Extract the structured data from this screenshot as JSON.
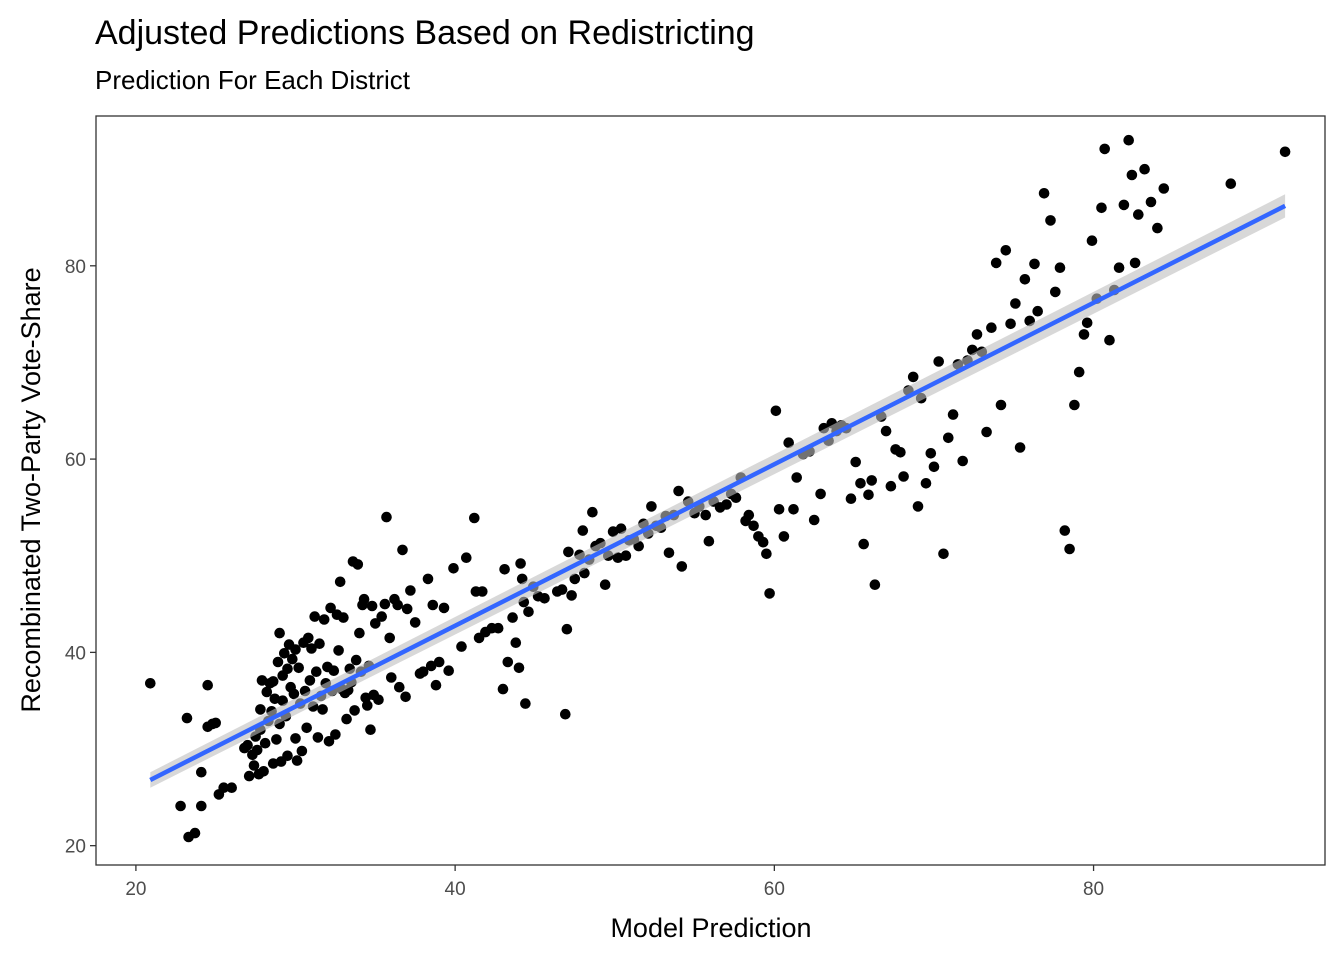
{
  "chart_data": {
    "type": "scatter",
    "title": "Adjusted Predictions Based on Redistricting",
    "subtitle": "Prediction For Each District",
    "xlabel": "Model Prediction",
    "ylabel": "Recombinated Two-Party Vote-Share",
    "xlim": [
      17.5,
      94.5
    ],
    "ylim": [
      18,
      95.5
    ],
    "x_ticks": [
      20,
      40,
      60,
      80
    ],
    "y_ticks": [
      20,
      40,
      60,
      80
    ],
    "grid": false,
    "point_color": "#000000",
    "fit_line": {
      "method": "linear",
      "color": "#3366FF",
      "band_color": "#BEBEBE",
      "x": [
        20.9,
        92.0
      ],
      "y": [
        26.8,
        86.2
      ],
      "band_halfwidth": [
        0.8,
        1.2
      ]
    },
    "points": [
      [
        20.9,
        36.8
      ],
      [
        22.8,
        24.1
      ],
      [
        23.2,
        33.2
      ],
      [
        23.3,
        20.9
      ],
      [
        23.7,
        21.3
      ],
      [
        24.1,
        24.1
      ],
      [
        24.1,
        27.6
      ],
      [
        24.5,
        36.6
      ],
      [
        24.5,
        32.3
      ],
      [
        24.8,
        32.6
      ],
      [
        25.0,
        32.7
      ],
      [
        25.2,
        25.3
      ],
      [
        25.5,
        26.0
      ],
      [
        26.0,
        26.0
      ],
      [
        26.8,
        30.1
      ],
      [
        27.0,
        30.4
      ],
      [
        27.1,
        27.2
      ],
      [
        27.3,
        29.4
      ],
      [
        27.4,
        28.3
      ],
      [
        27.5,
        31.3
      ],
      [
        27.6,
        29.9
      ],
      [
        27.7,
        27.4
      ],
      [
        27.8,
        32.0
      ],
      [
        27.8,
        34.1
      ],
      [
        27.9,
        37.1
      ],
      [
        28.0,
        27.7
      ],
      [
        28.1,
        30.6
      ],
      [
        28.2,
        35.9
      ],
      [
        28.3,
        32.9
      ],
      [
        28.4,
        36.8
      ],
      [
        28.5,
        33.9
      ],
      [
        28.6,
        28.5
      ],
      [
        28.6,
        37.0
      ],
      [
        28.7,
        35.2
      ],
      [
        28.8,
        31.0
      ],
      [
        28.9,
        39.0
      ],
      [
        29.0,
        32.6
      ],
      [
        29.0,
        42.0
      ],
      [
        29.1,
        28.7
      ],
      [
        29.2,
        37.6
      ],
      [
        29.2,
        35.0
      ],
      [
        29.3,
        39.9
      ],
      [
        29.4,
        33.4
      ],
      [
        29.5,
        29.3
      ],
      [
        29.5,
        38.3
      ],
      [
        29.6,
        40.8
      ],
      [
        29.7,
        36.4
      ],
      [
        29.8,
        39.3
      ],
      [
        29.9,
        35.7
      ],
      [
        30.0,
        31.1
      ],
      [
        30.0,
        40.3
      ],
      [
        30.1,
        28.8
      ],
      [
        30.2,
        38.4
      ],
      [
        30.3,
        34.7
      ],
      [
        30.4,
        29.8
      ],
      [
        30.5,
        41.0
      ],
      [
        30.6,
        36.0
      ],
      [
        30.7,
        32.2
      ],
      [
        30.8,
        41.5
      ],
      [
        30.9,
        37.1
      ],
      [
        31.0,
        40.4
      ],
      [
        31.1,
        34.4
      ],
      [
        31.2,
        43.7
      ],
      [
        31.3,
        38.0
      ],
      [
        31.4,
        31.2
      ],
      [
        31.5,
        40.9
      ],
      [
        31.6,
        35.5
      ],
      [
        31.7,
        34.1
      ],
      [
        31.8,
        43.4
      ],
      [
        31.9,
        36.8
      ],
      [
        32.0,
        38.5
      ],
      [
        32.1,
        30.8
      ],
      [
        32.2,
        44.6
      ],
      [
        32.3,
        36.0
      ],
      [
        32.4,
        38.1
      ],
      [
        32.5,
        31.5
      ],
      [
        32.6,
        43.9
      ],
      [
        32.7,
        40.2
      ],
      [
        32.8,
        47.3
      ],
      [
        32.9,
        36.2
      ],
      [
        33.0,
        43.6
      ],
      [
        33.1,
        35.8
      ],
      [
        33.2,
        33.1
      ],
      [
        33.3,
        36.1
      ],
      [
        33.4,
        38.3
      ],
      [
        33.5,
        36.9
      ],
      [
        33.6,
        49.4
      ],
      [
        33.7,
        34.0
      ],
      [
        33.8,
        39.2
      ],
      [
        33.9,
        49.1
      ],
      [
        34.0,
        42.0
      ],
      [
        34.1,
        38.0
      ],
      [
        34.2,
        44.9
      ],
      [
        34.3,
        45.5
      ],
      [
        34.4,
        35.3
      ],
      [
        34.5,
        34.5
      ],
      [
        34.6,
        38.6
      ],
      [
        34.7,
        32.0
      ],
      [
        34.8,
        44.8
      ],
      [
        34.9,
        35.6
      ],
      [
        35.0,
        43.0
      ],
      [
        35.2,
        35.1
      ],
      [
        35.4,
        43.7
      ],
      [
        35.6,
        45.0
      ],
      [
        35.7,
        54.0
      ],
      [
        35.9,
        41.5
      ],
      [
        36.0,
        37.4
      ],
      [
        36.2,
        45.5
      ],
      [
        36.4,
        44.9
      ],
      [
        36.5,
        36.4
      ],
      [
        36.7,
        50.6
      ],
      [
        36.9,
        35.4
      ],
      [
        37.0,
        44.5
      ],
      [
        37.2,
        46.4
      ],
      [
        37.5,
        43.1
      ],
      [
        37.8,
        37.8
      ],
      [
        38.0,
        38.0
      ],
      [
        38.3,
        47.6
      ],
      [
        38.5,
        38.6
      ],
      [
        38.6,
        44.9
      ],
      [
        38.8,
        36.6
      ],
      [
        39.0,
        39.0
      ],
      [
        39.3,
        44.6
      ],
      [
        39.6,
        38.1
      ],
      [
        39.9,
        48.7
      ],
      [
        40.4,
        40.6
      ],
      [
        40.7,
        49.8
      ],
      [
        41.2,
        53.9
      ],
      [
        41.3,
        46.3
      ],
      [
        41.5,
        41.5
      ],
      [
        41.7,
        46.3
      ],
      [
        41.9,
        42.1
      ],
      [
        42.3,
        42.5
      ],
      [
        42.7,
        42.5
      ],
      [
        43.0,
        36.2
      ],
      [
        43.1,
        48.6
      ],
      [
        43.3,
        39.0
      ],
      [
        43.6,
        43.6
      ],
      [
        43.8,
        41.0
      ],
      [
        44.0,
        38.4
      ],
      [
        44.1,
        49.2
      ],
      [
        44.2,
        47.6
      ],
      [
        44.3,
        45.2
      ],
      [
        44.4,
        34.7
      ],
      [
        44.6,
        44.2
      ],
      [
        44.9,
        46.8
      ],
      [
        45.2,
        45.8
      ],
      [
        45.6,
        45.6
      ],
      [
        46.4,
        46.3
      ],
      [
        46.7,
        46.5
      ],
      [
        46.9,
        33.6
      ],
      [
        47.0,
        42.4
      ],
      [
        47.1,
        50.4
      ],
      [
        47.3,
        45.9
      ],
      [
        47.5,
        47.6
      ],
      [
        47.8,
        50.1
      ],
      [
        48.0,
        52.6
      ],
      [
        48.1,
        48.2
      ],
      [
        48.4,
        49.6
      ],
      [
        48.6,
        54.5
      ],
      [
        48.8,
        51.0
      ],
      [
        49.1,
        51.3
      ],
      [
        49.4,
        47.0
      ],
      [
        49.6,
        50.0
      ],
      [
        49.9,
        52.5
      ],
      [
        50.2,
        49.8
      ],
      [
        50.4,
        52.8
      ],
      [
        50.7,
        50.0
      ],
      [
        50.9,
        51.6
      ],
      [
        51.2,
        51.7
      ],
      [
        51.5,
        51.0
      ],
      [
        51.8,
        53.3
      ],
      [
        52.1,
        52.3
      ],
      [
        52.3,
        55.1
      ],
      [
        52.6,
        53.1
      ],
      [
        52.9,
        52.9
      ],
      [
        53.2,
        54.1
      ],
      [
        53.4,
        50.3
      ],
      [
        53.7,
        54.2
      ],
      [
        54.0,
        56.7
      ],
      [
        54.2,
        48.9
      ],
      [
        54.6,
        55.6
      ],
      [
        55.0,
        54.4
      ],
      [
        55.3,
        55.1
      ],
      [
        55.7,
        54.2
      ],
      [
        55.9,
        51.5
      ],
      [
        56.2,
        55.6
      ],
      [
        56.6,
        55.0
      ],
      [
        57.0,
        55.3
      ],
      [
        57.3,
        56.4
      ],
      [
        57.6,
        56.0
      ],
      [
        57.9,
        58.1
      ],
      [
        58.2,
        53.6
      ],
      [
        58.4,
        54.2
      ],
      [
        58.7,
        53.1
      ],
      [
        59.0,
        52.0
      ],
      [
        59.3,
        51.4
      ],
      [
        59.5,
        50.2
      ],
      [
        59.7,
        46.1
      ],
      [
        60.1,
        65.0
      ],
      [
        60.3,
        54.8
      ],
      [
        60.6,
        52.0
      ],
      [
        60.9,
        61.7
      ],
      [
        61.2,
        54.8
      ],
      [
        61.4,
        58.1
      ],
      [
        61.8,
        60.5
      ],
      [
        62.2,
        60.8
      ],
      [
        62.5,
        53.7
      ],
      [
        62.9,
        56.4
      ],
      [
        63.1,
        63.2
      ],
      [
        63.4,
        61.9
      ],
      [
        63.6,
        63.7
      ],
      [
        63.9,
        62.9
      ],
      [
        64.2,
        63.5
      ],
      [
        64.5,
        63.2
      ],
      [
        64.8,
        55.9
      ],
      [
        65.1,
        59.7
      ],
      [
        65.4,
        57.5
      ],
      [
        65.6,
        51.2
      ],
      [
        65.9,
        56.3
      ],
      [
        66.1,
        57.8
      ],
      [
        66.3,
        47.0
      ],
      [
        66.7,
        64.4
      ],
      [
        67.0,
        62.9
      ],
      [
        67.3,
        57.2
      ],
      [
        67.6,
        61.0
      ],
      [
        67.9,
        60.7
      ],
      [
        68.1,
        58.2
      ],
      [
        68.4,
        67.1
      ],
      [
        68.7,
        68.5
      ],
      [
        69.0,
        55.1
      ],
      [
        69.2,
        66.3
      ],
      [
        69.5,
        57.5
      ],
      [
        69.8,
        60.6
      ],
      [
        70.0,
        59.2
      ],
      [
        70.3,
        70.1
      ],
      [
        70.6,
        50.2
      ],
      [
        70.9,
        62.2
      ],
      [
        71.2,
        64.6
      ],
      [
        71.5,
        69.8
      ],
      [
        71.8,
        59.8
      ],
      [
        72.1,
        70.2
      ],
      [
        72.4,
        71.3
      ],
      [
        72.7,
        72.9
      ],
      [
        73.0,
        71.1
      ],
      [
        73.3,
        62.8
      ],
      [
        73.6,
        73.6
      ],
      [
        73.9,
        80.3
      ],
      [
        74.2,
        65.6
      ],
      [
        74.5,
        81.6
      ],
      [
        74.8,
        74.0
      ],
      [
        75.1,
        76.1
      ],
      [
        75.4,
        61.2
      ],
      [
        75.7,
        78.6
      ],
      [
        76.0,
        74.3
      ],
      [
        76.3,
        80.2
      ],
      [
        76.5,
        75.3
      ],
      [
        76.9,
        87.5
      ],
      [
        77.3,
        84.7
      ],
      [
        77.6,
        77.3
      ],
      [
        77.9,
        79.8
      ],
      [
        78.2,
        52.6
      ],
      [
        78.5,
        50.7
      ],
      [
        78.8,
        65.6
      ],
      [
        79.1,
        69.0
      ],
      [
        79.4,
        72.9
      ],
      [
        79.6,
        74.1
      ],
      [
        79.9,
        82.6
      ],
      [
        80.2,
        76.6
      ],
      [
        80.5,
        86.0
      ],
      [
        80.7,
        92.1
      ],
      [
        81.0,
        72.3
      ],
      [
        81.3,
        77.5
      ],
      [
        81.6,
        79.8
      ],
      [
        81.9,
        86.3
      ],
      [
        82.2,
        93.0
      ],
      [
        82.4,
        89.4
      ],
      [
        82.6,
        80.3
      ],
      [
        82.8,
        85.3
      ],
      [
        83.2,
        90.0
      ],
      [
        83.6,
        86.6
      ],
      [
        84.0,
        83.9
      ],
      [
        84.4,
        88.0
      ],
      [
        88.6,
        88.5
      ],
      [
        92.0,
        91.8
      ]
    ]
  }
}
